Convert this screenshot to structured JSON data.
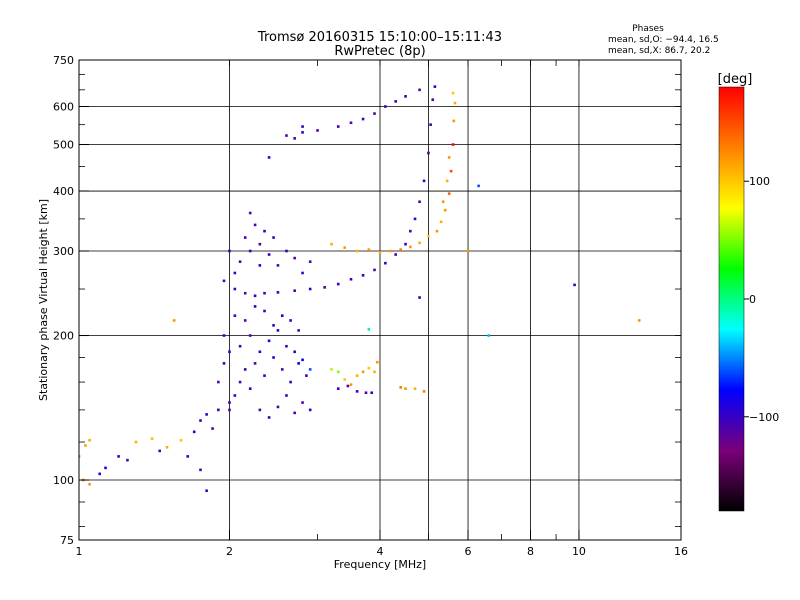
{
  "chart_data": {
    "type": "scatter",
    "title": "Tromsø 20160315 15:10:00–15:11:43",
    "subtitle": "RwPretec (8p)",
    "xlabel": "Frequency [MHz]",
    "ylabel": "Stationary phase Virtual Height [km]",
    "x_scale": "log",
    "y_scale": "log",
    "xlim": [
      1,
      16
    ],
    "ylim": [
      75,
      750
    ],
    "x_ticks": [
      1,
      2,
      4,
      6,
      8,
      10,
      16
    ],
    "x_tick_labels": [
      "1",
      "2",
      "4",
      "6",
      "8",
      "10",
      "16"
    ],
    "x_grid": [
      1,
      2,
      4,
      5,
      6,
      8,
      10,
      16
    ],
    "y_ticks": [
      75,
      100,
      200,
      300,
      400,
      500,
      600,
      750
    ],
    "y_tick_labels": [
      "75",
      "100",
      "200",
      "300",
      "400",
      "500",
      "600",
      "750"
    ],
    "y_grid": [
      100,
      200,
      300,
      400,
      500,
      600
    ],
    "grid": true,
    "stats": {
      "heading": "Phases",
      "line_o": "mean, sd,O: −94.4, 16.5",
      "line_x": "mean, sd,X:  86.7, 20.2"
    },
    "colorbar": {
      "label": "[deg]",
      "range": [
        -180,
        180
      ],
      "ticks": [
        100,
        0,
        -100
      ],
      "tick_labels": [
        "100",
        "0",
        "−100"
      ],
      "colormap": "rainbow",
      "stops": [
        "#000000",
        "#7a007a",
        "#0000ff",
        "#00ffff",
        "#00ff00",
        "#ffff00",
        "#ff8000",
        "#ff0000"
      ]
    },
    "series": [
      {
        "points": [
          [
            1.0,
            112,
            130
          ],
          [
            1.03,
            118,
            115
          ],
          [
            1.05,
            121,
            110
          ],
          [
            1.02,
            100,
            125
          ],
          [
            1.05,
            98,
            120
          ],
          [
            1.1,
            103,
            -90
          ],
          [
            1.13,
            106,
            -90
          ],
          [
            1.2,
            112,
            -100
          ],
          [
            1.3,
            120,
            110
          ],
          [
            1.4,
            122,
            105
          ],
          [
            1.5,
            117,
            110
          ],
          [
            1.6,
            121,
            100
          ],
          [
            1.25,
            110,
            -110
          ],
          [
            1.45,
            115,
            -100
          ],
          [
            1.7,
            126,
            -100
          ],
          [
            1.75,
            133,
            -110
          ],
          [
            1.8,
            137,
            -100
          ],
          [
            1.9,
            140,
            -100
          ],
          [
            2.0,
            145,
            -105
          ],
          [
            1.85,
            128,
            -110
          ],
          [
            1.65,
            112,
            -100
          ],
          [
            1.75,
            105,
            -110
          ],
          [
            1.8,
            95,
            -100
          ],
          [
            1.55,
            215,
            120
          ],
          [
            2.05,
            150,
            -100
          ],
          [
            2.1,
            160,
            -110
          ],
          [
            2.2,
            155,
            -100
          ],
          [
            2.3,
            140,
            -110
          ],
          [
            2.4,
            135,
            -100
          ],
          [
            2.5,
            142,
            -110
          ],
          [
            2.6,
            150,
            -100
          ],
          [
            2.7,
            138,
            -105
          ],
          [
            2.8,
            145,
            -110
          ],
          [
            2.9,
            140,
            -100
          ],
          [
            2.15,
            170,
            -100
          ],
          [
            2.25,
            175,
            -110
          ],
          [
            2.35,
            165,
            -100
          ],
          [
            2.45,
            180,
            -90
          ],
          [
            2.55,
            170,
            -110
          ],
          [
            2.65,
            160,
            -100
          ],
          [
            2.75,
            175,
            -80
          ],
          [
            2.85,
            165,
            -100
          ],
          [
            2.1,
            190,
            -100
          ],
          [
            2.2,
            200,
            -110
          ],
          [
            2.3,
            185,
            -100
          ],
          [
            2.4,
            195,
            -90
          ],
          [
            2.5,
            205,
            -100
          ],
          [
            2.6,
            190,
            -110
          ],
          [
            2.7,
            185,
            -100
          ],
          [
            2.8,
            178,
            -80
          ],
          [
            2.9,
            170,
            -60
          ],
          [
            2.05,
            220,
            -100
          ],
          [
            2.15,
            215,
            -110
          ],
          [
            2.25,
            230,
            -100
          ],
          [
            2.35,
            225,
            -110
          ],
          [
            2.45,
            210,
            -100
          ],
          [
            2.55,
            220,
            -80
          ],
          [
            2.65,
            215,
            -100
          ],
          [
            2.75,
            205,
            -110
          ],
          [
            1.95,
            175,
            -100
          ],
          [
            1.9,
            160,
            -110
          ],
          [
            1.95,
            200,
            -100
          ],
          [
            2.0,
            185,
            -100
          ],
          [
            2.0,
            140,
            -110
          ],
          [
            3.2,
            170,
            60
          ],
          [
            3.3,
            168,
            50
          ],
          [
            3.4,
            162,
            100
          ],
          [
            3.5,
            158,
            120
          ],
          [
            3.6,
            165,
            110
          ],
          [
            3.7,
            168,
            120
          ],
          [
            3.3,
            155,
            -100
          ],
          [
            3.45,
            157,
            -110
          ],
          [
            3.6,
            153,
            -100
          ],
          [
            3.75,
            152,
            -110
          ],
          [
            3.85,
            152,
            -100
          ],
          [
            3.95,
            176,
            120
          ],
          [
            3.9,
            168,
            110
          ],
          [
            3.8,
            171,
            100
          ],
          [
            4.5,
            155,
            120
          ],
          [
            4.7,
            155,
            110
          ],
          [
            4.9,
            153,
            130
          ],
          [
            4.4,
            156,
            130
          ],
          [
            2.05,
            250,
            -100
          ],
          [
            2.15,
            245,
            -110
          ],
          [
            2.25,
            242,
            -100
          ],
          [
            2.35,
            245,
            -110
          ],
          [
            2.5,
            246,
            -100
          ],
          [
            2.7,
            248,
            -110
          ],
          [
            2.9,
            250,
            -100
          ],
          [
            3.1,
            252,
            -110
          ],
          [
            3.3,
            256,
            -100
          ],
          [
            3.5,
            262,
            -110
          ],
          [
            3.7,
            267,
            -100
          ],
          [
            3.9,
            274,
            -110
          ],
          [
            4.1,
            283,
            -100
          ],
          [
            4.3,
            295,
            -110
          ],
          [
            4.5,
            310,
            -100
          ],
          [
            4.6,
            330,
            -110
          ],
          [
            4.7,
            350,
            -100
          ],
          [
            4.8,
            380,
            -110
          ],
          [
            4.9,
            420,
            -100
          ],
          [
            5.0,
            480,
            -110
          ],
          [
            5.05,
            550,
            -100
          ],
          [
            5.1,
            620,
            -110
          ],
          [
            5.15,
            660,
            -100
          ],
          [
            2.05,
            270,
            -100
          ],
          [
            2.1,
            285,
            -110
          ],
          [
            2.2,
            300,
            -100
          ],
          [
            2.3,
            310,
            -110
          ],
          [
            2.4,
            295,
            -100
          ],
          [
            2.5,
            280,
            -110
          ],
          [
            2.6,
            300,
            -100
          ],
          [
            2.7,
            290,
            -110
          ],
          [
            2.8,
            270,
            -100
          ],
          [
            2.9,
            285,
            -110
          ],
          [
            2.15,
            320,
            -100
          ],
          [
            2.25,
            340,
            -110
          ],
          [
            2.35,
            330,
            -100
          ],
          [
            2.2,
            360,
            -110
          ],
          [
            2.0,
            300,
            -100
          ],
          [
            1.95,
            260,
            -110
          ],
          [
            2.45,
            320,
            -100
          ],
          [
            2.3,
            280,
            -90
          ],
          [
            3.2,
            310,
            110
          ],
          [
            3.4,
            305,
            120
          ],
          [
            3.6,
            300,
            110
          ],
          [
            3.8,
            302,
            120
          ],
          [
            4.0,
            298,
            110
          ],
          [
            4.2,
            300,
            120
          ],
          [
            4.4,
            302,
            130
          ],
          [
            4.6,
            306,
            120
          ],
          [
            4.8,
            312,
            110
          ],
          [
            5.0,
            322,
            100
          ],
          [
            5.2,
            330,
            120
          ],
          [
            5.3,
            345,
            110
          ],
          [
            5.4,
            365,
            120
          ],
          [
            5.5,
            395,
            140
          ],
          [
            5.55,
            440,
            150
          ],
          [
            5.6,
            500,
            180
          ],
          [
            5.62,
            560,
            120
          ],
          [
            5.65,
            610,
            110
          ],
          [
            5.6,
            640,
            100
          ],
          [
            5.5,
            470,
            120
          ],
          [
            5.45,
            420,
            110
          ],
          [
            5.35,
            380,
            120
          ],
          [
            2.6,
            522,
            -110
          ],
          [
            2.8,
            530,
            -100
          ],
          [
            3.0,
            535,
            -110
          ],
          [
            3.3,
            545,
            -100
          ],
          [
            3.5,
            555,
            -110
          ],
          [
            3.7,
            565,
            -100
          ],
          [
            3.9,
            580,
            -110
          ],
          [
            4.1,
            600,
            -100
          ],
          [
            4.3,
            615,
            -110
          ],
          [
            4.5,
            630,
            -100
          ],
          [
            4.8,
            650,
            -110
          ],
          [
            2.8,
            545,
            -100
          ],
          [
            2.7,
            515,
            -110
          ],
          [
            2.4,
            470,
            -100
          ],
          [
            3.8,
            206,
            0
          ],
          [
            4.8,
            240,
            -100
          ],
          [
            6.0,
            300,
            120
          ],
          [
            6.3,
            410,
            -60
          ],
          [
            6.6,
            200,
            -40
          ],
          [
            9.8,
            255,
            -100
          ],
          [
            13.2,
            215,
            120
          ]
        ]
      }
    ]
  }
}
